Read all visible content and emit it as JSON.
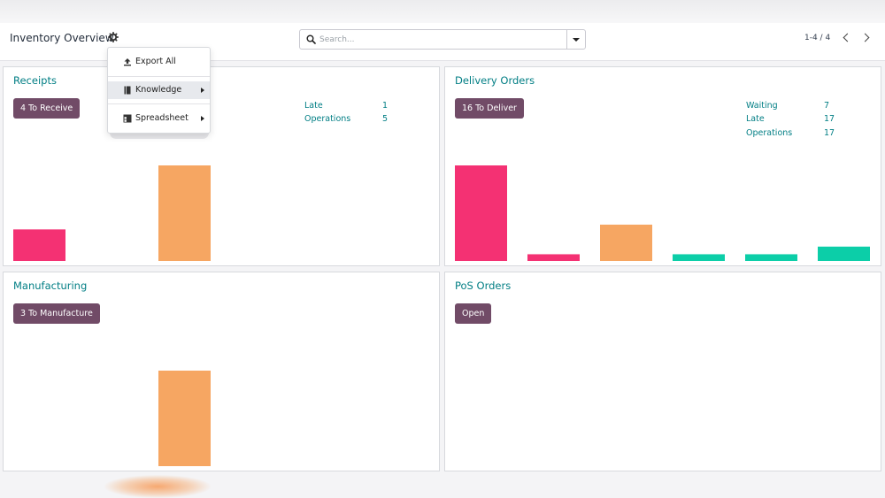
{
  "page": {
    "title": "Inventory Overview",
    "search_placeholder": "Search...",
    "pager": "1-4 / 4"
  },
  "colors": {
    "pink": "#f43173",
    "orange": "#f6a662",
    "teal": "#0ccea8",
    "primary_button": "#714b67",
    "link_teal": "#017e84"
  },
  "icons": {
    "gear": "gear-icon",
    "search": "search-icon",
    "export": "upload-icon",
    "knowledge": "book-icon",
    "spreadsheet": "spreadsheet-icon"
  },
  "action_menu": {
    "items": [
      {
        "label": "Export All"
      },
      {
        "label": "Knowledge",
        "has_submenu": true
      },
      {
        "label": "Spreadsheet",
        "has_submenu": true
      }
    ]
  },
  "cards": [
    {
      "title": "Receipts",
      "button": "4 To Receive",
      "stats": [
        {
          "label": "Late",
          "value": "1"
        },
        {
          "label": "Operations",
          "value": "5"
        }
      ],
      "bars": [
        {
          "color": "pink",
          "value": 0.33
        },
        {
          "color": "none",
          "value": 0
        },
        {
          "color": "orange",
          "value": 1.0
        }
      ]
    },
    {
      "title": "Delivery Orders",
      "button": "16 To Deliver",
      "stats": [
        {
          "label": "Waiting",
          "value": "7"
        },
        {
          "label": "Late",
          "value": "17"
        },
        {
          "label": "Operations",
          "value": "17"
        }
      ],
      "bars": [
        {
          "color": "pink",
          "value": 1.0
        },
        {
          "color": "pink",
          "value": 0.07
        },
        {
          "color": "orange",
          "value": 0.38
        },
        {
          "color": "teal",
          "value": 0.07
        },
        {
          "color": "teal",
          "value": 0.07
        },
        {
          "color": "teal",
          "value": 0.15
        }
      ]
    },
    {
      "title": "Manufacturing",
      "button": "3 To Manufacture",
      "stats": [],
      "bars": [
        {
          "color": "none",
          "value": 0
        },
        {
          "color": "none",
          "value": 0
        },
        {
          "color": "orange",
          "value": 1.0
        }
      ]
    },
    {
      "title": "PoS Orders",
      "button": "Open",
      "stats": [],
      "bars": []
    }
  ]
}
